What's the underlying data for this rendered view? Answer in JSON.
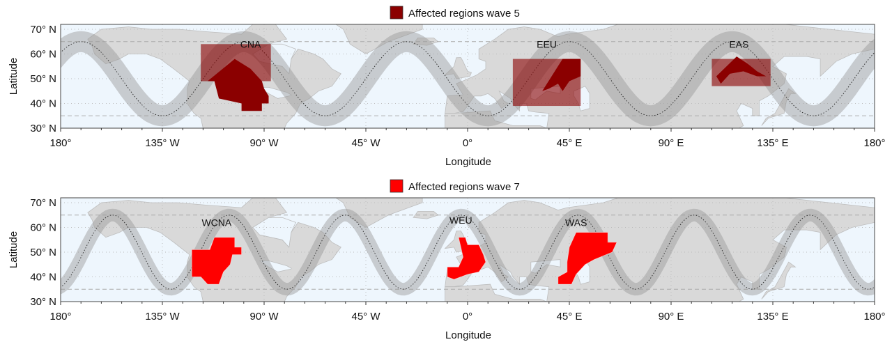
{
  "chart_data": {
    "type": "map",
    "panels": [
      {
        "legend": "Affected regions wave 5",
        "legend_color": "#8b0000",
        "wavenumber": 5,
        "wave_phase_peak_lon": -171,
        "xlabel": "Longitude",
        "ylabel": "Latitude",
        "xlim": [
          -180,
          180
        ],
        "ylim": [
          30,
          72
        ],
        "xticks": [
          "180°",
          "135° W",
          "90° W",
          "45° W",
          "0°",
          "45° E",
          "90° E",
          "135° E",
          "180°"
        ],
        "yticks": [
          "30° N",
          "40° N",
          "50° N",
          "60° N",
          "70° N"
        ],
        "regions": [
          {
            "name": "CNA",
            "label_lon": -96,
            "label_lat": 64,
            "extent": [
              -118,
              -87,
              49,
              64
            ],
            "core": [
              [
                -115,
                49
              ],
              [
                -103,
                58
              ],
              [
                -96,
                54
              ],
              [
                -91,
                49
              ],
              [
                -90,
                46
              ],
              [
                -88,
                43
              ],
              [
                -88,
                40
              ],
              [
                -91,
                40
              ],
              [
                -91,
                37
              ],
              [
                -100,
                37
              ],
              [
                -100,
                40
              ],
              [
                -110,
                42
              ],
              [
                -112,
                49
              ]
            ]
          },
          {
            "name": "EEU",
            "label_lon": 35,
            "label_lat": 64,
            "extent": [
              20,
              50,
              39,
              58
            ],
            "core": [
              [
                33,
                45
              ],
              [
                42,
                58
              ],
              [
                50,
                58
              ],
              [
                50,
                51
              ],
              [
                45,
                49
              ],
              [
                42,
                45
              ],
              [
                40,
                48
              ],
              [
                36,
                46
              ]
            ]
          },
          {
            "name": "EAS",
            "label_lon": 120,
            "label_lat": 64,
            "extent": [
              108,
              134,
              47,
              58
            ],
            "core": [
              [
                110,
                51
              ],
              [
                119,
                59
              ],
              [
                124,
                56
              ],
              [
                128,
                53
              ],
              [
                132,
                51
              ],
              [
                128,
                51
              ],
              [
                122,
                53
              ],
              [
                116,
                52
              ],
              [
                112,
                48
              ]
            ]
          }
        ]
      },
      {
        "legend": "Affected regions wave 7",
        "legend_color": "#ff0000",
        "wavenumber": 7,
        "wave_phase_peak_lon": -157,
        "xlabel": "Longitude",
        "ylabel": "Latitude",
        "xlim": [
          -180,
          180
        ],
        "ylim": [
          30,
          72
        ],
        "xticks": [
          "180°",
          "135° W",
          "90° W",
          "45° W",
          "0°",
          "45° E",
          "90° E",
          "135° E",
          "180°"
        ],
        "yticks": [
          "30° N",
          "40° N",
          "50° N",
          "60° N",
          "70° N"
        ],
        "regions": [
          {
            "name": "WCNA",
            "label_lon": -111,
            "label_lat": 62,
            "extent": [
              -122,
              -102,
              37,
              56
            ],
            "core": [
              [
                -122,
                51
              ],
              [
                -114,
                51
              ],
              [
                -112,
                56
              ],
              [
                -103,
                56
              ],
              [
                -103,
                52
              ],
              [
                -100,
                52
              ],
              [
                -100,
                49
              ],
              [
                -104,
                49
              ],
              [
                -105,
                45
              ],
              [
                -108,
                42
              ],
              [
                -110,
                37
              ],
              [
                -115,
                37
              ],
              [
                -118,
                40
              ],
              [
                -122,
                40
              ]
            ]
          },
          {
            "name": "WEU",
            "label_lon": -3,
            "label_lat": 63,
            "extent": [
              -10,
              12,
              39,
              56
            ],
            "core": [
              [
                -4,
                56
              ],
              [
                -1,
                56
              ],
              [
                0,
                53
              ],
              [
                5,
                53
              ],
              [
                7,
                49
              ],
              [
                8,
                46
              ],
              [
                5,
                42
              ],
              [
                0,
                41
              ],
              [
                -6,
                39
              ],
              [
                -9,
                40
              ],
              [
                -9,
                44
              ],
              [
                -4,
                44
              ],
              [
                -2,
                48
              ],
              [
                -3,
                52
              ]
            ]
          },
          {
            "name": "WAS",
            "label_lon": 48,
            "label_lat": 62,
            "extent": [
              38,
              67,
              37,
              58
            ],
            "core": [
              [
                45,
                52
              ],
              [
                48,
                58
              ],
              [
                62,
                58
              ],
              [
                62,
                54
              ],
              [
                66,
                54
              ],
              [
                64,
                50
              ],
              [
                56,
                47
              ],
              [
                52,
                45
              ],
              [
                48,
                41
              ],
              [
                46,
                37
              ],
              [
                40,
                37
              ],
              [
                40,
                40
              ],
              [
                44,
                42
              ],
              [
                44,
                46
              ]
            ]
          }
        ]
      }
    ]
  }
}
